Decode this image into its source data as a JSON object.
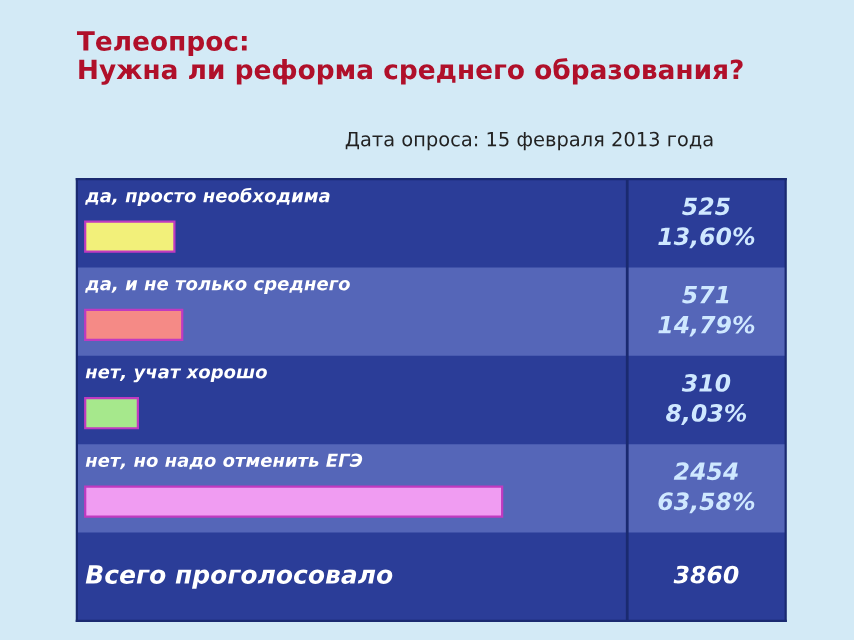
{
  "chart_data": {
    "type": "bar",
    "orientation": "horizontal",
    "title": "Телеопрос:\nНужна ли реформа среднего образования?",
    "subtitle": "Дата опроса: 15 февраля 2013 года",
    "categories": [
      "да, просто необходима",
      "да, и не только среднего",
      "нет, учат хорошо",
      "нет, но надо отменить ЕГЭ"
    ],
    "values": [
      525,
      571,
      310,
      2454
    ],
    "colors": [
      "#f2f07a",
      "#f58a86",
      "#a6e88c",
      "#f09cf2"
    ],
    "value_labels": [
      "525\n13,60%",
      "571\n14,79%",
      "310\n8,03%",
      "2454\n63,58%"
    ],
    "annotations": [
      "Всего проголосовало",
      "3860"
    ]
  }
}
